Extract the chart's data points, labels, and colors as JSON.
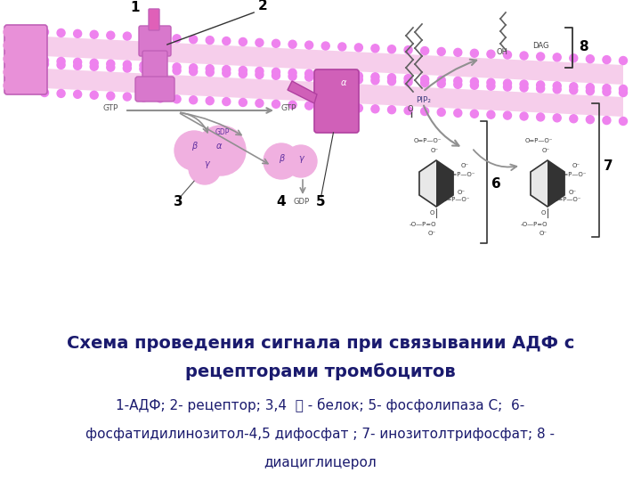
{
  "title_line1": "Схема проведения сигнала при связывании АДФ с",
  "title_line2": "рецепторами тромбоцитов",
  "subtitle_line1": "1-АДФ; 2- рецептор; 3,4  Ⓖ - белок; 5- фосфолипаза С;  6-",
  "subtitle_line2": "фосфатидилинозитол-4,5 дифосфат ; 7- инозитолтрифосфат; 8 -",
  "subtitle_line3": "диациглицерол",
  "title_color": "#1a1a6e",
  "subtitle_color": "#1a1a6e",
  "title_fontsize": 14,
  "subtitle_fontsize": 11,
  "bg_color": "#ffffff",
  "membrane_color": "#ee82ee",
  "membrane_fill": "#f5c6e8",
  "protein_color": "#da70d6",
  "protein_dark": "#c060b8",
  "label_color": "#000000",
  "arrow_color": "#808080",
  "text_color": "#555555"
}
